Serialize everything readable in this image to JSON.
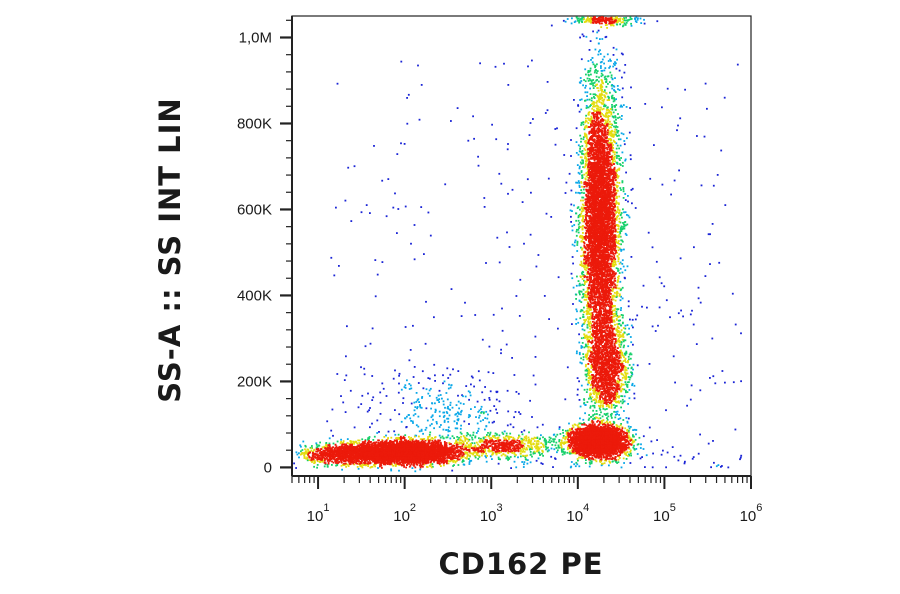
{
  "chart_data": {
    "type": "scatter",
    "subtype": "flow-cytometry-density-dot-plot",
    "xlabel": "CD162 PE",
    "ylabel": "SS-A :: SS INT LIN",
    "x_scale": "log",
    "y_scale": "linear",
    "xlim": [
      5,
      1000000
    ],
    "ylim": [
      -20000,
      1050000
    ],
    "x_ticks": [
      {
        "value": 10,
        "base": "10",
        "exp": "1"
      },
      {
        "value": 100,
        "base": "10",
        "exp": "2"
      },
      {
        "value": 1000,
        "base": "10",
        "exp": "3"
      },
      {
        "value": 10000,
        "base": "10",
        "exp": "4"
      },
      {
        "value": 100000,
        "base": "10",
        "exp": "5"
      },
      {
        "value": 1000000,
        "base": "10",
        "exp": "6"
      }
    ],
    "y_ticks": [
      {
        "value": 0,
        "label": "0"
      },
      {
        "value": 200000,
        "label": "200K"
      },
      {
        "value": 400000,
        "label": "400K"
      },
      {
        "value": 600000,
        "label": "600K"
      },
      {
        "value": 800000,
        "label": "800K"
      },
      {
        "value": 1000000,
        "label": "1,0M"
      }
    ],
    "grid": false,
    "legend": "none",
    "color_scale": [
      "#1a24d6",
      "#0aa8e8",
      "#16d06a",
      "#e4dc10",
      "#ec1a0a"
    ],
    "populations": [
      {
        "x_center": 100,
        "x_log_sd": 0.32,
        "y_center": 35000,
        "y_sd": 13000,
        "count": 4200
      },
      {
        "x_center": 20,
        "x_log_sd": 0.25,
        "y_center": 30000,
        "y_sd": 12000,
        "count": 900
      },
      {
        "x_center": 1500,
        "x_log_sd": 0.28,
        "y_center": 50000,
        "y_sd": 14000,
        "count": 600
      },
      {
        "x_center": 17000,
        "x_log_sd": 0.17,
        "y_center": 60000,
        "y_sd": 18000,
        "count": 3200
      },
      {
        "x_center": 18000,
        "x_log_sd": 0.11,
        "y_center": 570000,
        "y_sd": 160000,
        "count": 6000
      },
      {
        "x_center": 22000,
        "x_log_sd": 0.12,
        "y_center": 230000,
        "y_sd": 55000,
        "count": 1400
      },
      {
        "x_center": 300,
        "x_log_sd": 0.4,
        "y_center": 120000,
        "y_sd": 50000,
        "count": 300
      },
      {
        "x_center": 20000,
        "x_log_sd": 0.2,
        "y_center": 1040000,
        "y_sd": 5000,
        "count": 250
      }
    ]
  }
}
